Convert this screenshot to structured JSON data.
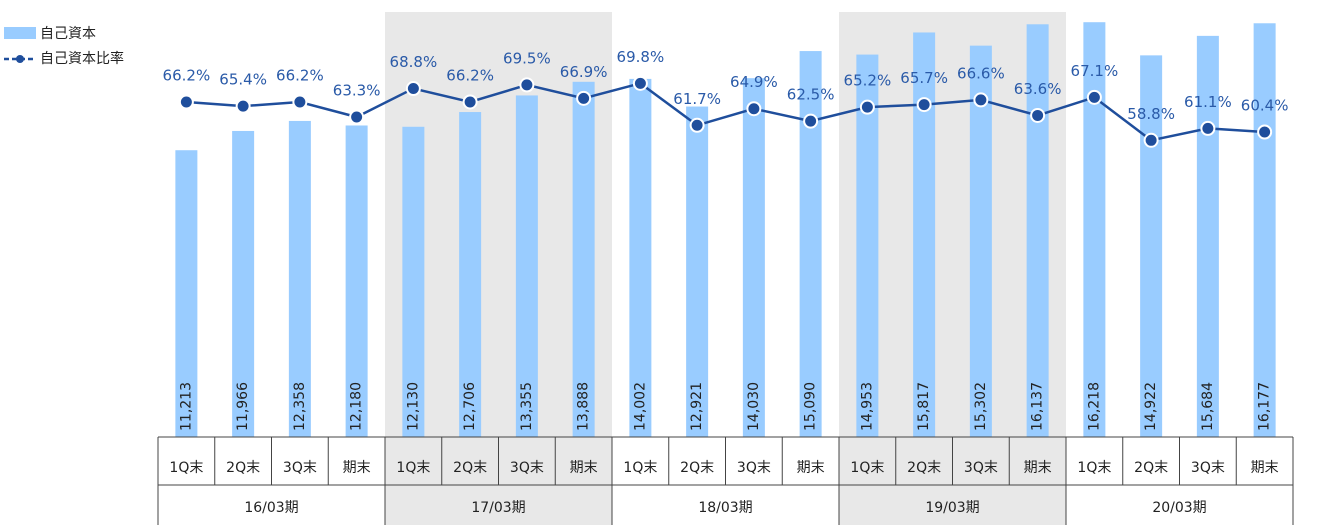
{
  "chart_data": {
    "type": "bar+line",
    "categories": [
      "1Q末",
      "2Q末",
      "3Q末",
      "期末",
      "1Q末",
      "2Q末",
      "3Q末",
      "期末",
      "1Q末",
      "2Q末",
      "3Q末",
      "期末",
      "1Q末",
      "2Q末",
      "3Q末",
      "期末",
      "1Q末",
      "2Q末",
      "3Q末",
      "期末"
    ],
    "groups": [
      "16/03期",
      "17/03期",
      "18/03期",
      "19/03期",
      "20/03期"
    ],
    "series": [
      {
        "name": "自己資本",
        "type": "bar",
        "color": "#99ccff",
        "values": [
          11213,
          11966,
          12358,
          12180,
          12130,
          12706,
          13355,
          13888,
          14002,
          12921,
          14030,
          15090,
          14953,
          15817,
          15302,
          16137,
          16218,
          14922,
          15684,
          16177
        ],
        "value_labels": [
          "11,213",
          "11,966",
          "12,358",
          "12,180",
          "12,130",
          "12,706",
          "13,355",
          "13,888",
          "14,002",
          "12,921",
          "14,030",
          "15,090",
          "14,953",
          "15,817",
          "15,302",
          "16,137",
          "16,218",
          "14,922",
          "15,684",
          "16,177"
        ]
      },
      {
        "name": "自己資本比率",
        "type": "line",
        "axis": "y2",
        "color": "#1f4e9c",
        "values": [
          66.2,
          65.4,
          66.2,
          63.3,
          68.8,
          66.2,
          69.5,
          66.9,
          69.8,
          61.7,
          64.9,
          62.5,
          65.2,
          65.7,
          66.6,
          63.6,
          67.1,
          58.8,
          61.1,
          60.4
        ],
        "value_labels": [
          "66.2%",
          "65.4%",
          "66.2%",
          "63.3%",
          "68.8%",
          "66.2%",
          "69.5%",
          "66.9%",
          "69.8%",
          "61.7%",
          "64.9%",
          "62.5%",
          "65.2%",
          "65.7%",
          "66.6%",
          "63.6%",
          "67.1%",
          "58.8%",
          "61.1%",
          "60.4%"
        ]
      }
    ],
    "ylim": [
      0,
      16500
    ],
    "y2lim": [
      1.5,
      83
    ],
    "group_shading": "#e8e8e8"
  }
}
